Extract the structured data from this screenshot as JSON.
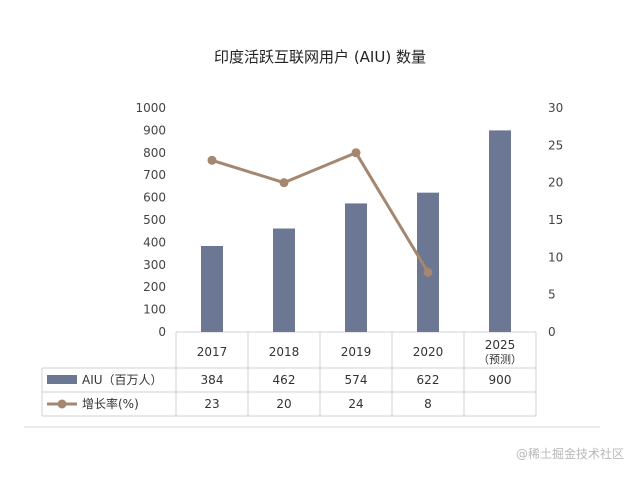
{
  "watermark": "@稀土掘金技术社区",
  "chart_data": {
    "type": "bar",
    "title": "印度活跃互联网用户 (AIU) 数量",
    "categories": [
      "2017",
      "2018",
      "2019",
      "2020",
      "2025"
    ],
    "category_sublabels": [
      "",
      "",
      "",
      "",
      "（预测）"
    ],
    "series": [
      {
        "name": "AIU（百万人）",
        "type": "bar",
        "axis": "left",
        "values": [
          384,
          462,
          574,
          622,
          900
        ],
        "color": "#6b7793"
      },
      {
        "name": "增长率(%)",
        "type": "line",
        "axis": "right",
        "values": [
          23,
          20,
          24,
          8,
          null
        ],
        "color": "#a48770"
      }
    ],
    "y_left": {
      "min": 0,
      "max": 1000,
      "ticks": [
        "0",
        "100",
        "200",
        "300",
        "400",
        "500",
        "600",
        "700",
        "800",
        "900",
        "1000"
      ]
    },
    "y_right": {
      "min": 0,
      "max": 30,
      "ticks": [
        "0",
        "5",
        "10",
        "15",
        "20",
        "25",
        "30"
      ]
    },
    "table": {
      "rows": [
        {
          "label": "AIU（百万人）",
          "cells": [
            "384",
            "462",
            "574",
            "622",
            "900"
          ]
        },
        {
          "label": "增长率(%)",
          "cells": [
            "23",
            "20",
            "24",
            "8",
            ""
          ]
        }
      ]
    },
    "gridlines": false,
    "legend": "data-table"
  }
}
